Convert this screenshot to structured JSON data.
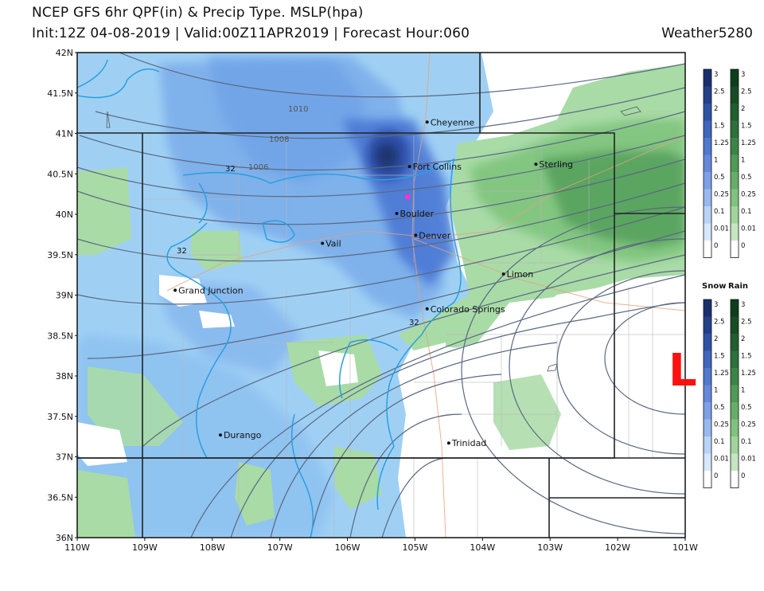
{
  "header": {
    "title_line1": "NCEP GFS 6hr QPF(in) & Precip Type. MSLP(hpa)",
    "title_line2": "Init:12Z 04-08-2019 | Valid:00Z11APR2019 | Forecast Hour:060",
    "brand": "Weather5280"
  },
  "map": {
    "lat_labels": [
      "42N",
      "41.5N",
      "41N",
      "40.5N",
      "40N",
      "39.5N",
      "39N",
      "38.5N",
      "38N",
      "37.5N",
      "37N",
      "36.5N",
      "36N"
    ],
    "lon_labels": [
      "110W",
      "109W",
      "108W",
      "107W",
      "106W",
      "105W",
      "104W",
      "103W",
      "102W",
      "101W"
    ],
    "cities": [
      {
        "name": "Cheyenne",
        "lon": -104.82,
        "lat": 41.14
      },
      {
        "name": "Fort Collins",
        "lon": -105.08,
        "lat": 40.59
      },
      {
        "name": "Sterling",
        "lon": -103.21,
        "lat": 40.62
      },
      {
        "name": "Boulder",
        "lon": -105.27,
        "lat": 40.01
      },
      {
        "name": "Denver",
        "lon": -104.99,
        "lat": 39.74
      },
      {
        "name": "Vail",
        "lon": -106.37,
        "lat": 39.64
      },
      {
        "name": "Limon",
        "lon": -103.69,
        "lat": 39.26
      },
      {
        "name": "Grand Junction",
        "lon": -108.55,
        "lat": 39.06
      },
      {
        "name": "Colorado Springs",
        "lon": -104.82,
        "lat": 38.83
      },
      {
        "name": "Durango",
        "lon": -107.88,
        "lat": 37.27
      },
      {
        "name": "Trinidad",
        "lon": -104.5,
        "lat": 37.17
      }
    ],
    "isobar_labels": [
      "1010",
      "1008",
      "1006"
    ],
    "freezing_line_labels": [
      "32",
      "32",
      "32",
      "32"
    ],
    "low_pressure_marker": "L",
    "colors": {
      "snow_light": "#9fd0f4",
      "snow_mid": "#6a9ee6",
      "snow_heavy": "#2f4fa8",
      "rain_light": "#a9dba7",
      "rain_mid": "#7fc47d",
      "rain_heavy": "#4e9a56",
      "isobar": "#5a6880",
      "freezing_line": "#2a9fe0",
      "low_marker": "#ff1010"
    }
  },
  "scales": {
    "top_ticks": [
      "3",
      "2.5",
      "2",
      "1.5",
      "1.25",
      "1",
      "0.5",
      "0.25",
      "0.1",
      "0.01",
      "0"
    ],
    "bottom_ticks": [
      "3",
      "2.5",
      "2",
      "1.5",
      "1.25",
      "1",
      "0.5",
      "0.25",
      "0.1",
      "0.01",
      "0"
    ],
    "snow_label": "Snow",
    "rain_label": "Rain",
    "snow_colors": [
      "#1a2f6e",
      "#24408a",
      "#2f52a6",
      "#3e66c0",
      "#5078d0",
      "#6688dc",
      "#7ea0e8",
      "#98b8f0",
      "#b8d4f6",
      "#d6e8fb",
      "#ffffff"
    ],
    "rain_colors": [
      "#0e3d1c",
      "#174d26",
      "#215e30",
      "#2c703b",
      "#3a8448",
      "#4e9a56",
      "#66ae68",
      "#80c27e",
      "#a0d49c",
      "#c6e6c2",
      "#ffffff"
    ]
  }
}
